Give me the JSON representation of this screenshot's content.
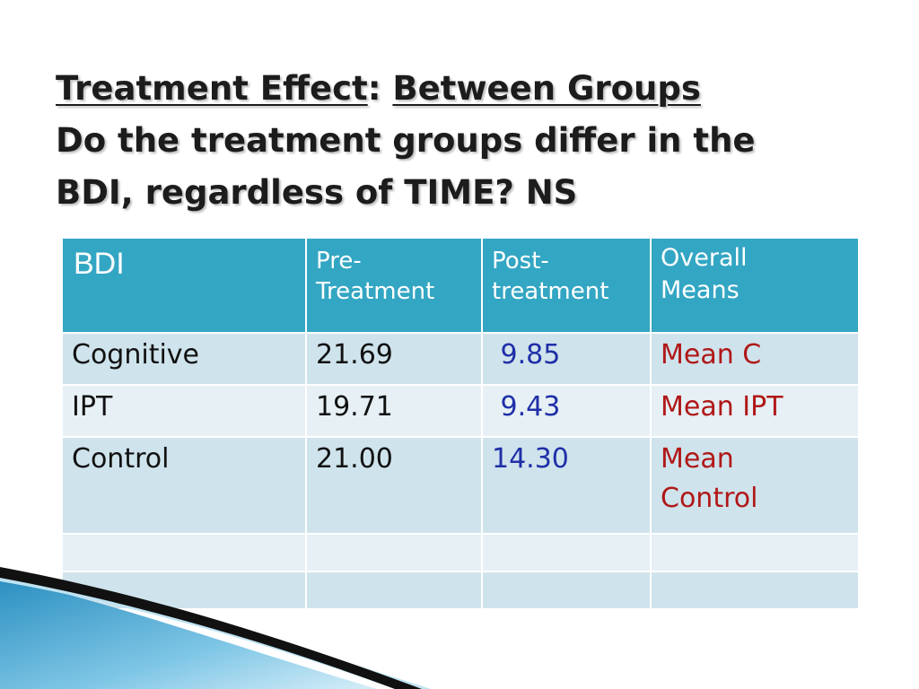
{
  "title": {
    "part1": "Treatment Effect",
    "sep": ":",
    "part2": "Between Groups",
    "line2": "Do the treatment groups differ in the",
    "line3": "BDI, regardless of TIME?   NS"
  },
  "table": {
    "headers": [
      "BDI",
      "Pre-\nTreatment",
      "Post-\ntreatment",
      "Overall\nMeans"
    ],
    "rows": [
      {
        "label": "Cognitive",
        "pre": "21.69",
        "post": "9.85",
        "overall": "Mean C"
      },
      {
        "label": "IPT",
        "pre": "19.71",
        "post": "9.43",
        "overall": "Mean IPT"
      },
      {
        "label": "Control",
        "pre": "21.00",
        "post": "14.30",
        "overall": "Mean\nControl"
      }
    ]
  },
  "colors": {
    "header_bg": "#33a6c3",
    "row_dark": "#cfe3ec",
    "row_light": "#e6f0f5",
    "post_text": "#1f2fa8",
    "overall_text": "#b01818"
  }
}
